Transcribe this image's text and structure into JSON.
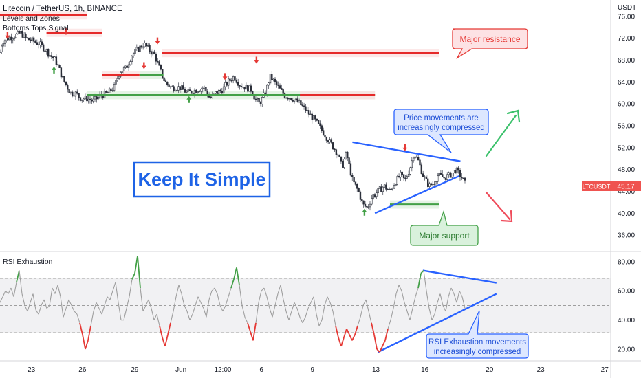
{
  "header": {
    "title": "Litecoin / TetherUS, 1h, BINANCE",
    "indicator1": "Levels and Zones",
    "indicator2": "Bottoms Tops Signal"
  },
  "price_axis": {
    "unit": "USDT",
    "ticks": [
      "76.00",
      "72.00",
      "68.00",
      "64.00",
      "60.00",
      "56.00",
      "52.00",
      "48.00",
      "44.00",
      "40.00",
      "36.00"
    ],
    "symbol_label": "LTCUSDT",
    "last_price": "45.17"
  },
  "rsi_panel": {
    "label": "RSI Exhaustion",
    "ticks": [
      "80.00",
      "60.00",
      "40.00",
      "20.00"
    ]
  },
  "time_axis": {
    "ticks": [
      "23",
      "26",
      "29",
      "Jun",
      "12:00",
      "6",
      "9",
      "13",
      "16",
      "20",
      "23",
      "27"
    ]
  },
  "annotations": {
    "keep_simple": "Keep It Simple",
    "major_resistance": "Major resistance",
    "compressed_line1": "Price movements are",
    "compressed_line2": "increasingly compressed",
    "major_support": "Major support",
    "rsi_line1": "RSI Exhaustion movements",
    "rsi_line2": "increasingly compressed"
  },
  "colors": {
    "up": "#26a69a",
    "down": "#ef5350",
    "resistance": "#e52a2a",
    "support": "#43a047",
    "trend": "#2962ff",
    "rsi": "#9e9e9e",
    "rsi_high": "#43a047",
    "rsi_low": "#e53935"
  },
  "chart_data": [
    {
      "type": "candlestick",
      "title": "Litecoin / TetherUS, 1h, BINANCE",
      "ylabel": "USDT",
      "ylim": [
        33,
        79
      ],
      "x_ticks": [
        "23",
        "26",
        "29",
        "Jun",
        "12:00",
        "6",
        "9",
        "13",
        "16",
        "20",
        "23",
        "27"
      ],
      "path": [
        [
          0,
          69.5
        ],
        [
          0.05,
          70.5
        ],
        [
          0.2,
          71.5
        ],
        [
          0.5,
          72
        ],
        [
          1.0,
          72.5
        ],
        [
          1.4,
          73
        ],
        [
          1.7,
          72
        ],
        [
          2.2,
          71.5
        ],
        [
          2.6,
          71
        ],
        [
          3.0,
          70
        ],
        [
          3.3,
          69
        ],
        [
          3.7,
          68
        ],
        [
          4.0,
          66
        ],
        [
          4.2,
          64.5
        ],
        [
          4.4,
          63.5
        ],
        [
          4.7,
          62
        ],
        [
          5.0,
          62
        ],
        [
          5.4,
          61
        ],
        [
          5.8,
          61
        ],
        [
          6.2,
          60.5
        ],
        [
          6.7,
          61.5
        ],
        [
          7.2,
          62
        ],
        [
          7.6,
          63
        ],
        [
          8.0,
          66
        ],
        [
          8.4,
          66.5
        ],
        [
          8.8,
          69
        ],
        [
          9.2,
          70
        ],
        [
          9.6,
          71
        ],
        [
          9.9,
          70
        ],
        [
          10.3,
          69
        ],
        [
          10.7,
          66
        ],
        [
          11.0,
          64
        ],
        [
          11.4,
          63
        ],
        [
          12.0,
          63
        ],
        [
          12.5,
          62
        ],
        [
          13.0,
          62.5
        ],
        [
          13.6,
          63
        ],
        [
          14.0,
          61
        ],
        [
          14.4,
          62
        ],
        [
          14.8,
          62.5
        ],
        [
          15.2,
          64
        ],
        [
          15.6,
          65
        ],
        [
          16.0,
          63.5
        ],
        [
          16.4,
          63
        ],
        [
          16.8,
          62.5
        ],
        [
          17.0,
          61
        ],
        [
          17.3,
          60
        ],
        [
          17.7,
          62
        ],
        [
          18.0,
          65
        ],
        [
          18.3,
          64
        ],
        [
          18.7,
          62.5
        ],
        [
          19.0,
          61.5
        ],
        [
          19.5,
          61
        ],
        [
          20.0,
          60
        ],
        [
          20.5,
          58.5
        ],
        [
          21.0,
          57
        ],
        [
          21.5,
          55
        ],
        [
          22.0,
          53
        ],
        [
          22.5,
          51
        ],
        [
          22.8,
          48.5
        ],
        [
          23.1,
          51
        ],
        [
          23.5,
          46
        ],
        [
          23.9,
          44
        ],
        [
          24.2,
          41.5
        ],
        [
          24.5,
          41
        ],
        [
          24.8,
          43
        ],
        [
          25.2,
          44
        ],
        [
          25.6,
          45
        ],
        [
          26.0,
          44
        ],
        [
          26.3,
          45.5
        ],
        [
          26.7,
          47
        ],
        [
          27.0,
          46
        ],
        [
          27.3,
          48
        ],
        [
          27.6,
          51
        ],
        [
          27.9,
          49.5
        ],
        [
          28.2,
          47
        ],
        [
          28.6,
          45
        ],
        [
          28.9,
          45.5
        ],
        [
          29.2,
          47
        ],
        [
          29.6,
          46.5
        ],
        [
          30.0,
          47
        ],
        [
          30.4,
          48
        ],
        [
          30.8,
          46.5
        ],
        [
          31.0,
          45.5
        ]
      ],
      "levels": [
        {
          "kind": "resistance",
          "price": 76.2,
          "from": 0,
          "to": 5.8
        },
        {
          "kind": "resistance",
          "price": 73.0,
          "from": 3.1,
          "to": 6.8
        },
        {
          "kind": "resistance",
          "price": 69.3,
          "from": 10.8,
          "to": 29.3
        },
        {
          "kind": "resistance",
          "price": 65.3,
          "from": 6.8,
          "to": 9.3
        },
        {
          "kind": "support",
          "price": 65.3,
          "from": 9.3,
          "to": 10.9
        },
        {
          "kind": "support",
          "price": 61.6,
          "from": 5.8,
          "to": 25.0
        },
        {
          "kind": "resistance",
          "price": 61.6,
          "from": 20.0,
          "to": 25.0
        },
        {
          "kind": "support",
          "price": 41.6,
          "from": 26.0,
          "to": 29.3
        }
      ],
      "signals": [
        {
          "kind": "top",
          "x": 0.5,
          "price": 72.5
        },
        {
          "kind": "top",
          "x": 4.4,
          "price": 73.2
        },
        {
          "kind": "bottom",
          "x": 3.6,
          "price": 66.2
        },
        {
          "kind": "top",
          "x": 9.6,
          "price": 67.0
        },
        {
          "kind": "top",
          "x": 10.5,
          "price": 71.5
        },
        {
          "kind": "bottom",
          "x": 12.6,
          "price": 60.8
        },
        {
          "kind": "top",
          "x": 15.0,
          "price": 65.0
        },
        {
          "kind": "top",
          "x": 17.1,
          "price": 68.0
        },
        {
          "kind": "bottom",
          "x": 24.3,
          "price": 40.2
        },
        {
          "kind": "top",
          "x": 27.0,
          "price": 52.0
        }
      ],
      "trendlines": [
        {
          "from": [
            23.5,
            53.0
          ],
          "to": [
            30.7,
            49.5
          ]
        },
        {
          "from": [
            25.0,
            40.0
          ],
          "to": [
            30.6,
            46.8
          ]
        }
      ],
      "last": 45.17
    },
    {
      "type": "line",
      "title": "RSI Exhaustion",
      "ylim": [
        12,
        87
      ],
      "y_ticks": [
        80,
        60,
        40,
        20
      ],
      "bands": [
        70,
        50,
        30
      ],
      "series": [
        {
          "values": [
            52,
            56,
            60,
            58,
            62,
            56,
            66,
            74,
            58,
            50,
            46,
            52,
            58,
            47,
            44,
            50,
            54,
            48,
            50,
            62,
            58,
            64,
            56,
            42,
            48,
            54,
            50,
            46,
            44,
            38,
            30,
            20,
            26,
            36,
            46,
            52,
            48,
            44,
            50,
            56,
            54,
            60,
            66,
            52,
            40,
            40,
            48,
            56,
            68,
            72,
            84,
            62,
            46,
            50,
            54,
            48,
            40,
            44,
            36,
            28,
            22,
            30,
            38,
            46,
            56,
            64,
            58,
            50,
            46,
            40,
            44,
            50,
            56,
            52,
            48,
            42,
            54,
            60,
            62,
            58,
            50,
            46,
            50,
            56,
            62,
            68,
            76,
            64,
            50,
            42,
            38,
            32,
            26,
            38,
            52,
            60,
            62,
            56,
            48,
            42,
            50,
            58,
            64,
            54,
            46,
            40,
            46,
            52,
            48,
            42,
            38,
            42,
            48,
            52,
            56,
            44,
            36,
            40,
            50,
            56,
            52,
            46,
            36,
            28,
            22,
            28,
            34,
            30,
            26,
            30,
            36,
            42,
            50,
            54,
            46,
            38,
            30,
            20,
            18,
            22,
            26,
            34,
            40,
            48,
            58,
            64,
            60,
            52,
            46,
            40,
            48,
            56,
            62,
            72,
            74,
            60,
            48,
            40,
            44,
            52,
            58,
            50,
            46,
            56,
            62,
            58,
            52,
            60,
            56,
            48
          ]
        }
      ],
      "trendlines": [
        {
          "from": [
            0.6596,
            74
          ],
          "to": [
            0.7745,
            65.5
          ]
        },
        {
          "from": [
            0.5897,
            18
          ],
          "to": [
            0.7745,
            58
          ]
        }
      ]
    }
  ]
}
